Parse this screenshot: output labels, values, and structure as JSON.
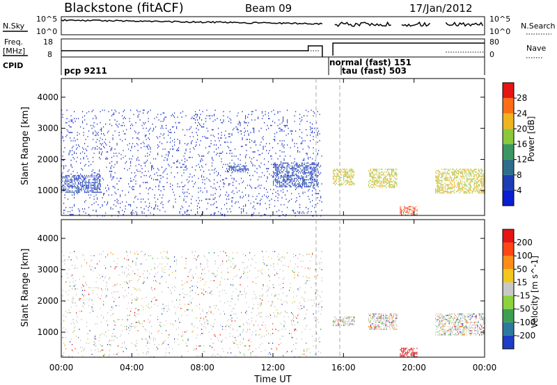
{
  "header": {
    "title": "Blackstone (fitACF)",
    "beam": "Beam 09",
    "date": "17/Jan/2012"
  },
  "strip_labels": {
    "nsky": "N.Sky",
    "nsky_ticks": [
      "10^5",
      "10^0"
    ],
    "nsearch": "N.Search",
    "freq": "Freq.",
    "freq_unit": "[MHz]",
    "freq_ticks": [
      "18",
      "8"
    ],
    "nave": "Nave",
    "nave_ticks": [
      "80",
      "0"
    ],
    "cpid": "CPID"
  },
  "cpid_labels": [
    "pcp 9211",
    "normal (fast) 151",
    "tau (fast) 503"
  ],
  "x_axis": {
    "label": "Time UT",
    "ticks": [
      "00:00",
      "04:00",
      "08:00",
      "12:00",
      "16:00",
      "20:00",
      "00:00"
    ]
  },
  "power_panel": {
    "ylabel": "Slant Range [km]",
    "yticks": [
      "1000",
      "2000",
      "3000",
      "4000"
    ],
    "cbar_label": "Power [dB]",
    "cbar_ticks": [
      "4",
      "8",
      "12",
      "16",
      "20",
      "24",
      "28"
    ],
    "cbar_colors": [
      "#0a1ed2",
      "#1e3cb4",
      "#2e6e8c",
      "#3c9664",
      "#8cc83c",
      "#f0b41e",
      "#ff6e14",
      "#e61414"
    ]
  },
  "velocity_panel": {
    "ylabel": "Slant Range [km]",
    "yticks": [
      "1000",
      "2000",
      "3000",
      "4000"
    ],
    "cbar_label": "Velocity [m s^-1]",
    "cbar_ticks": [
      "200",
      "100",
      "50",
      "15",
      "-15",
      "-50",
      "-100",
      "-200"
    ],
    "cbar_colors": [
      "#1e3cc8",
      "#2e78a0",
      "#3ca050",
      "#8cd23c",
      "#c8c8c8",
      "#f0c81e",
      "#ff8c14",
      "#ff4614",
      "#e61414"
    ]
  },
  "chart_data": [
    {
      "type": "heatmap",
      "title": "Power",
      "xlabel": "Time UT",
      "ylabel": "Slant Range [km]",
      "x_range_hours": [
        0,
        24
      ],
      "ylim": [
        200,
        4600
      ],
      "colorbar_label": "Power [dB]",
      "colorbar_range": [
        0,
        32
      ],
      "regions": [
        {
          "t": [
            0,
            14.8
          ],
          "range_km": [
            200,
            3600
          ],
          "power_db": 4
        },
        {
          "t": [
            0,
            2.2
          ],
          "range_km": [
            950,
            1500
          ],
          "power_db": 6
        },
        {
          "t": [
            9.4,
            10.6
          ],
          "range_km": [
            1600,
            1800
          ],
          "power_db": 6
        },
        {
          "t": [
            12.0,
            14.6
          ],
          "range_km": [
            1100,
            1900
          ],
          "power_db": 6
        },
        {
          "t": [
            15.4,
            16.6
          ],
          "range_km": [
            1200,
            1700
          ],
          "power_db": 20
        },
        {
          "t": [
            17.4,
            19.0
          ],
          "range_km": [
            1100,
            1700
          ],
          "power_db": 20
        },
        {
          "t": [
            21.2,
            24.0
          ],
          "range_km": [
            900,
            1700
          ],
          "power_db": 20
        },
        {
          "t": [
            19.2,
            20.2
          ],
          "range_km": [
            200,
            500
          ],
          "power_db": 28
        }
      ],
      "no_data": [
        {
          "t": [
            14.8,
            15.3
          ]
        }
      ]
    },
    {
      "type": "heatmap",
      "title": "Velocity",
      "xlabel": "Time UT",
      "ylabel": "Slant Range [km]",
      "x_range_hours": [
        0,
        24
      ],
      "ylim": [
        200,
        4600
      ],
      "colorbar_label": "Velocity [m s^-1]",
      "colorbar_range": [
        -250,
        250
      ],
      "regions": [
        {
          "t": [
            0,
            14.8
          ],
          "range_km": [
            200,
            3600
          ],
          "velocity": 0
        },
        {
          "t": [
            15.4,
            16.6
          ],
          "range_km": [
            1200,
            1500
          ],
          "velocity": 0
        },
        {
          "t": [
            17.4,
            19.0
          ],
          "range_km": [
            1100,
            1600
          ],
          "velocity": 0
        },
        {
          "t": [
            21.2,
            24.0
          ],
          "range_km": [
            900,
            1600
          ],
          "velocity": 0
        },
        {
          "t": [
            19.2,
            20.2
          ],
          "range_km": [
            200,
            500
          ],
          "velocity": -200
        }
      ],
      "no_data": [
        {
          "t": [
            14.8,
            15.3
          ]
        }
      ]
    }
  ]
}
